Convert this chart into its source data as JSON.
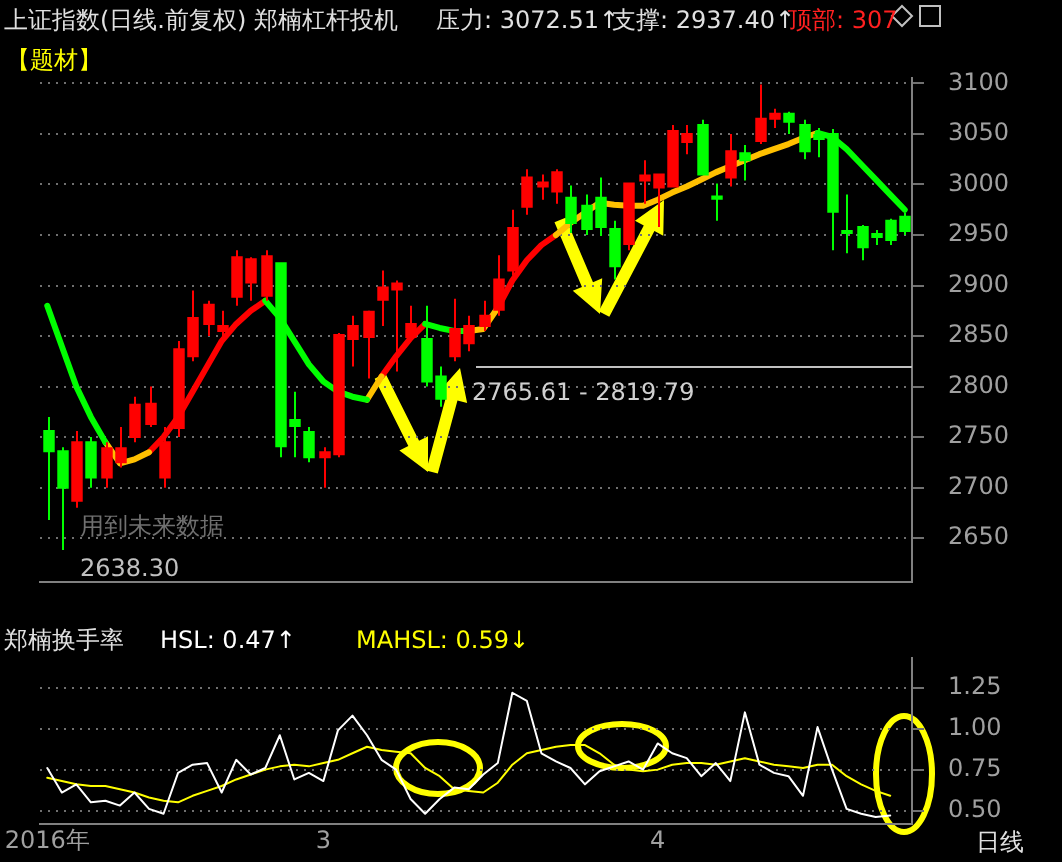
{
  "chart_data": [
    {
      "type": "candlestick",
      "title": "上证指数(日线.前复权) 郑楠杠杆投机",
      "categories": [
        null,
        null,
        null,
        null,
        null,
        null,
        null,
        null,
        null,
        null,
        null,
        null,
        null,
        null,
        null,
        null,
        null,
        null,
        null,
        null,
        null,
        null,
        null,
        null,
        null,
        null,
        null,
        null,
        null,
        null,
        null,
        null,
        null,
        null,
        null,
        null,
        null,
        null,
        null,
        null,
        null,
        null,
        null,
        null,
        null,
        null,
        null,
        null,
        null,
        null,
        null,
        null,
        null,
        null,
        null,
        null,
        null,
        null,
        null,
        null
      ],
      "ohlc": [
        [
          2756,
          2770,
          2668,
          2736
        ],
        [
          2736,
          2740,
          2638.3,
          2700
        ],
        [
          2687,
          2756,
          2680,
          2745
        ],
        [
          2745,
          2750,
          2700,
          2710
        ],
        [
          2710,
          2745,
          2700,
          2739
        ],
        [
          2725,
          2760,
          2720,
          2739
        ],
        [
          2750,
          2790,
          2745,
          2782
        ],
        [
          2763,
          2800,
          2760,
          2783
        ],
        [
          2710,
          2760,
          2700,
          2745
        ],
        [
          2759,
          2845,
          2750,
          2837
        ],
        [
          2830,
          2895,
          2825,
          2868
        ],
        [
          2862,
          2885,
          2850,
          2881
        ],
        [
          2855,
          2875,
          2845,
          2860
        ],
        [
          2889,
          2935,
          2880,
          2928
        ],
        [
          2903,
          2928,
          2885,
          2926
        ],
        [
          2890,
          2935,
          2885,
          2929
        ],
        [
          2922,
          2922,
          2730,
          2741
        ],
        [
          2767,
          2795,
          2730,
          2761
        ],
        [
          2755,
          2760,
          2725,
          2730
        ],
        [
          2730,
          2740,
          2700,
          2735
        ],
        [
          2733,
          2853,
          2730,
          2851
        ],
        [
          2847,
          2870,
          2820,
          2860
        ],
        [
          2849,
          2875,
          2808,
          2874
        ],
        [
          2886,
          2915,
          2860,
          2898
        ],
        [
          2896,
          2905,
          2815,
          2902
        ],
        [
          2849,
          2880,
          2845,
          2862
        ],
        [
          2847,
          2880,
          2800,
          2805
        ],
        [
          2810,
          2820,
          2780,
          2788
        ],
        [
          2830,
          2887,
          2825,
          2857
        ],
        [
          2843,
          2870,
          2835,
          2860
        ],
        [
          2860,
          2885,
          2855,
          2870
        ],
        [
          2876,
          2930,
          2870,
          2906
        ],
        [
          2915,
          2975,
          2910,
          2957
        ],
        [
          2978,
          3015,
          2970,
          3007
        ],
        [
          2998,
          3010,
          2985,
          3002
        ],
        [
          2993,
          3015,
          2981,
          3012
        ],
        [
          2987,
          2999,
          2952,
          2962
        ],
        [
          2979,
          2990,
          2950,
          2956
        ],
        [
          2987,
          3007,
          2949,
          2958
        ],
        [
          2956,
          2964,
          2906,
          2919
        ],
        [
          2941,
          3001,
          2935,
          3001
        ],
        [
          3004,
          3024,
          2981,
          3009
        ],
        [
          2997,
          3010,
          2958,
          3010
        ],
        [
          2998,
          3059,
          2998,
          3053
        ],
        [
          3042,
          3059,
          3030,
          3050
        ],
        [
          3059,
          3064,
          3010,
          3010
        ],
        [
          2988,
          3001,
          2964,
          2986
        ],
        [
          3007,
          3050,
          2998,
          3033
        ],
        [
          3031,
          3039,
          3004,
          3024
        ],
        [
          3043,
          3099,
          3040,
          3065
        ],
        [
          3065,
          3075,
          3056,
          3070
        ],
        [
          3070,
          3072,
          3050,
          3062
        ],
        [
          3059,
          3064,
          3025,
          3033
        ],
        [
          3049,
          3056,
          3027,
          3045
        ],
        [
          3050,
          3055,
          2935,
          2973
        ],
        [
          2954,
          2990,
          2932,
          2952
        ],
        [
          2958,
          2960,
          2925,
          2938
        ],
        [
          2951,
          2955,
          2940,
          2948
        ],
        [
          2964,
          2966,
          2940,
          2945
        ],
        [
          2968,
          2972,
          2950,
          2954
        ]
      ],
      "colors": [
        "#00ff00",
        "#00ff00",
        "#ff0000",
        "#00ff00",
        "#ff0000",
        "#ff0000",
        "#ff0000",
        "#ff0000",
        "#ff0000",
        "#ff0000",
        "#ff0000",
        "#ff0000",
        "#ff0000",
        "#ff0000",
        "#ff0000",
        "#ff0000",
        "#00ff00",
        "#00ff00",
        "#00ff00",
        "#ff0000",
        "#ff0000",
        "#ff0000",
        "#ff0000",
        "#ff0000",
        "#ff0000",
        "#ff0000",
        "#00ff00",
        "#00ff00",
        "#ff0000",
        "#ff0000",
        "#ff0000",
        "#ff0000",
        "#ff0000",
        "#ff0000",
        "#ff0000",
        "#ff0000",
        "#00ff00",
        "#00ff00",
        "#00ff00",
        "#00ff00",
        "#ff0000",
        "#ff0000",
        "#ff0000",
        "#ff0000",
        "#ff0000",
        "#00ff00",
        "#00ff00",
        "#ff0000",
        "#00ff00",
        "#ff0000",
        "#ff0000",
        "#00ff00",
        "#00ff00",
        "#00ff00",
        "#00ff00",
        "#00ff00",
        "#00ff00",
        "#00ff00",
        "#00ff00",
        "#00ff00"
      ],
      "series": [
        {
          "type": "line",
          "color": "#00ff00",
          "values": [
            2880,
            2840,
            2800,
            2770,
            2745,
            null,
            null,
            null,
            null,
            null,
            null,
            null,
            null,
            null,
            null,
            2885,
            2868,
            2845,
            2822,
            2805,
            2795,
            2790,
            2787,
            null,
            null,
            null,
            2862,
            2858,
            2855,
            2855,
            null,
            null,
            null,
            null,
            null,
            null,
            null,
            null,
            null,
            null,
            null,
            null,
            null,
            null,
            null,
            null,
            null,
            null,
            null,
            null,
            null,
            null,
            null,
            3051,
            3047,
            3035,
            3020,
            3005,
            2990,
            2975
          ]
        },
        {
          "type": "line",
          "color": "#ffc000",
          "values": [
            null,
            null,
            null,
            null,
            2745,
            2724,
            2728,
            2735,
            null,
            null,
            null,
            null,
            null,
            null,
            null,
            null,
            null,
            null,
            null,
            null,
            null,
            null,
            2787,
            2810,
            null,
            null,
            null,
            null,
            null,
            2855,
            2857,
            2878,
            null,
            null,
            null,
            2950,
            2962,
            2972,
            2982,
            2980,
            2979,
            2979,
            2985,
            2992,
            2998,
            3005,
            3012,
            3018,
            3024,
            3030,
            3035,
            3040,
            3046,
            3051,
            null,
            null,
            null,
            null,
            null,
            null
          ]
        },
        {
          "type": "line",
          "color": "#ff0000",
          "values": [
            null,
            null,
            null,
            null,
            null,
            null,
            null,
            2735,
            2750,
            2770,
            2795,
            2820,
            2845,
            2862,
            2875,
            2885,
            null,
            null,
            null,
            null,
            null,
            null,
            null,
            2810,
            2830,
            2848,
            2862,
            null,
            null,
            null,
            null,
            2878,
            2905,
            2925,
            2940,
            2950,
            null,
            null,
            null,
            null,
            null,
            null,
            null,
            null,
            null,
            null,
            null,
            null,
            null,
            null,
            null,
            null,
            null,
            null,
            null,
            null,
            null,
            null,
            null,
            null
          ]
        }
      ],
      "ylim": [
        2607,
        3105
      ],
      "yticks": [
        2650,
        2700,
        2750,
        2800,
        2850,
        2900,
        2950,
        3000,
        3050,
        3100
      ],
      "grid": "y",
      "tick_labels": "y",
      "ref_lines": [
        {
          "axis": "y",
          "value": 2819.79,
          "color": "#c0c0c0"
        }
      ],
      "annotations": [
        "压力: 3072.51↑",
        "支撑: 2937.40↑",
        "顶部: 307",
        "【题材】",
        "2638.30",
        "用到未来数据",
        "2765.61 - 2819.79"
      ]
    },
    {
      "type": "line",
      "title": "郑楠换手率",
      "categories": [
        "2016年",
        null,
        null,
        null,
        null,
        null,
        null,
        null,
        null,
        null,
        null,
        null,
        null,
        null,
        null,
        null,
        null,
        null,
        null,
        "3",
        null,
        null,
        null,
        null,
        null,
        null,
        null,
        null,
        null,
        null,
        null,
        null,
        null,
        null,
        null,
        null,
        null,
        null,
        null,
        null,
        null,
        null,
        "4",
        null,
        null,
        null,
        null,
        null,
        null,
        null,
        null,
        null,
        null,
        null,
        null,
        null,
        null,
        null,
        null,
        null
      ],
      "series": [
        {
          "color": "#ffffff",
          "values": [
            0.76,
            0.61,
            0.66,
            0.55,
            0.56,
            0.53,
            0.61,
            0.51,
            0.48,
            0.73,
            0.78,
            0.79,
            0.61,
            0.81,
            0.72,
            0.76,
            0.96,
            0.69,
            0.73,
            0.68,
            0.99,
            1.08,
            0.96,
            0.81,
            0.75,
            0.57,
            0.48,
            0.57,
            0.64,
            0.63,
            0.72,
            0.79,
            1.22,
            1.17,
            0.85,
            0.8,
            0.76,
            0.66,
            0.74,
            0.77,
            0.8,
            0.75,
            0.91,
            0.85,
            0.82,
            0.71,
            0.79,
            0.68,
            1.1,
            0.78,
            0.73,
            0.71,
            0.59,
            1.01,
            0.75,
            0.51,
            0.48,
            0.46,
            0.47,
            null
          ]
        },
        {
          "color": "#ffff00",
          "values": [
            0.7,
            0.68,
            0.66,
            0.65,
            0.65,
            0.63,
            0.61,
            0.58,
            0.56,
            0.55,
            0.59,
            0.62,
            0.65,
            0.69,
            0.72,
            0.75,
            0.77,
            0.78,
            0.77,
            0.79,
            0.81,
            0.85,
            0.89,
            0.87,
            0.86,
            0.85,
            0.76,
            0.71,
            0.63,
            0.62,
            0.61,
            0.67,
            0.78,
            0.85,
            0.87,
            0.89,
            0.9,
            0.9,
            0.85,
            0.78,
            0.75,
            0.74,
            0.75,
            0.78,
            0.79,
            0.79,
            0.78,
            0.8,
            0.82,
            0.8,
            0.78,
            0.77,
            0.76,
            0.78,
            0.78,
            0.71,
            0.66,
            0.62,
            0.59,
            null
          ]
        }
      ],
      "ylim": [
        0.42,
        1.43
      ],
      "yticks": [
        {
          "value": 0.5,
          "label": "0.50"
        },
        {
          "value": 0.75,
          "label": "0.75"
        },
        {
          "value": 1,
          "label": "1.00"
        },
        {
          "value": 1.25,
          "label": "1.25"
        }
      ],
      "grid": "y",
      "annotations": [
        "HSL: 0.47↑",
        "MAHSL: 0.59↓",
        "日线"
      ]
    }
  ]
}
